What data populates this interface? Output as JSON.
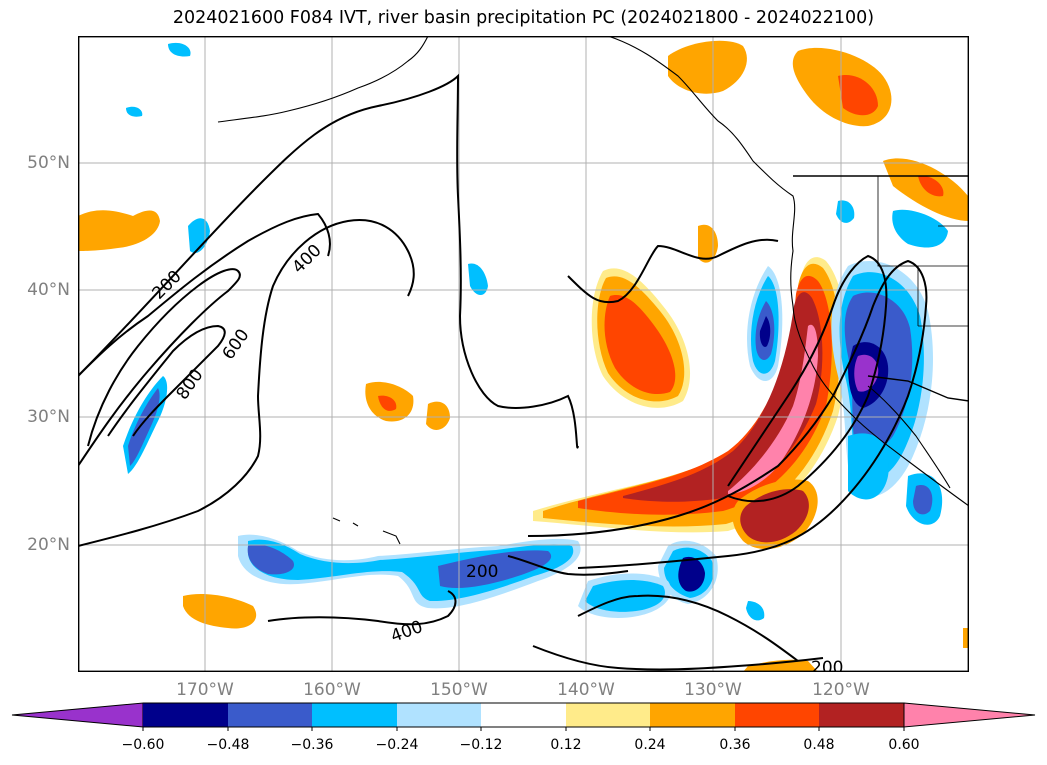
{
  "title": "2024021600 F084 IVT, river basin precipitation PC (2024021800 - 2024022100)",
  "lat_labels": [
    "50°N",
    "40°N",
    "30°N",
    "20°N"
  ],
  "lon_labels": [
    "170°W",
    "160°W",
    "150°W",
    "140°W",
    "130°W",
    "120°W"
  ],
  "contour_labels": [
    "200",
    "400",
    "600",
    "800",
    "200",
    "400",
    "200"
  ],
  "colorbar": {
    "ticks": [
      "−0.60",
      "−0.48",
      "−0.36",
      "−0.24",
      "−0.12",
      "0.12",
      "0.24",
      "0.36",
      "0.48",
      "0.60"
    ],
    "colors": [
      "#9932cc",
      "#00008b",
      "#3a5bcb",
      "#00bfff",
      "#b0e2ff",
      "#ffffff",
      "#ffeb8a",
      "#ffa500",
      "#ff4500",
      "#b22222",
      "#ff82ab",
      "#ff82ab"
    ]
  }
}
